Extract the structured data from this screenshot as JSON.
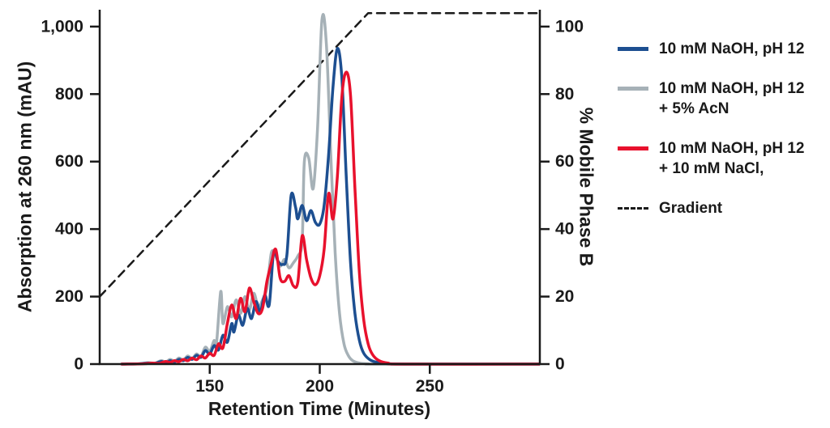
{
  "figure": {
    "x_title": "Retention Time (Minutes)",
    "y_left_title": "Absorption at 260 nm (mAU)",
    "y_right_title": "% Mobile Phase B"
  },
  "legend": {
    "items": [
      {
        "label": "10 mM NaOH, pH 12",
        "color": "#1d4f91",
        "dash": false
      },
      {
        "label": "10 mM NaOH, pH 12\n+ 5% AcN",
        "color": "#a6b1b7",
        "dash": false
      },
      {
        "label": "10 mM NaOH, pH 12\n+ 10 mM NaCl,",
        "color": "#e8112d",
        "dash": false
      },
      {
        "label": "Gradient",
        "color": "#1a1a1a",
        "dash": true
      }
    ]
  },
  "chart_data": {
    "type": "line",
    "title": "",
    "xlabel": "Retention Time (Minutes)",
    "ylabel_left": "Absorption at 260 nm (mAU)",
    "ylabel_right": "% Mobile Phase B",
    "xlim": [
      100,
      300
    ],
    "ylim_left": [
      0,
      1050
    ],
    "ylim_right": [
      0,
      105
    ],
    "grid": false,
    "legend_position": "right",
    "axis_color": "#1a1a1a",
    "x_ticks": {
      "values": [
        150,
        200,
        250
      ],
      "labels": [
        "150",
        "200",
        "250"
      ]
    },
    "y_left_ticks": {
      "values": [
        0,
        200,
        400,
        600,
        800,
        1000
      ],
      "labels": [
        "0",
        "200",
        "400",
        "600",
        "800",
        "1,000"
      ]
    },
    "y_right_ticks": {
      "values": [
        0,
        20,
        40,
        60,
        80,
        100
      ],
      "labels": [
        "0",
        "20",
        "40",
        "60",
        "80",
        "100"
      ]
    },
    "series": [
      {
        "name": "Gradient",
        "axis": "right",
        "color": "#1a1a1a",
        "width": 2.5,
        "dash": [
          10,
          7
        ],
        "smooth": false,
        "points": [
          [
            100,
            20
          ],
          [
            222,
            104
          ],
          [
            300,
            104
          ]
        ]
      },
      {
        "name": "10 mM NaOH, pH 12 + 5% AcN",
        "axis": "left",
        "color": "#a6b1b7",
        "width": 3.5,
        "dash": null,
        "smooth": true,
        "points": [
          [
            110,
            0
          ],
          [
            118,
            1
          ],
          [
            122,
            4
          ],
          [
            125,
            3
          ],
          [
            128,
            10
          ],
          [
            130,
            6
          ],
          [
            132,
            14
          ],
          [
            134,
            8
          ],
          [
            136,
            18
          ],
          [
            138,
            12
          ],
          [
            140,
            24
          ],
          [
            142,
            16
          ],
          [
            144,
            30
          ],
          [
            146,
            22
          ],
          [
            148,
            50
          ],
          [
            150,
            38
          ],
          [
            152,
            70
          ],
          [
            153,
            55
          ],
          [
            155,
            215
          ],
          [
            156,
            120
          ],
          [
            158,
            170
          ],
          [
            160,
            140
          ],
          [
            162,
            190
          ],
          [
            164,
            150
          ],
          [
            166,
            200
          ],
          [
            168,
            160
          ],
          [
            170,
            210
          ],
          [
            172,
            170
          ],
          [
            174,
            190
          ],
          [
            176,
            225
          ],
          [
            178,
            330
          ],
          [
            180,
            320
          ],
          [
            182,
            290
          ],
          [
            184,
            310
          ],
          [
            186,
            285
          ],
          [
            188,
            300
          ],
          [
            190,
            320
          ],
          [
            192,
            365
          ],
          [
            193,
            600
          ],
          [
            195,
            610
          ],
          [
            197,
            520
          ],
          [
            199,
            700
          ],
          [
            201,
            1020
          ],
          [
            203,
            950
          ],
          [
            205,
            620
          ],
          [
            207,
            330
          ],
          [
            209,
            150
          ],
          [
            211,
            60
          ],
          [
            213,
            25
          ],
          [
            215,
            10
          ],
          [
            218,
            3
          ],
          [
            222,
            1
          ],
          [
            228,
            0
          ],
          [
            300,
            0
          ]
        ]
      },
      {
        "name": "10 mM NaOH, pH 12",
        "axis": "left",
        "color": "#1d4f91",
        "width": 3.5,
        "dash": null,
        "smooth": true,
        "points": [
          [
            110,
            0
          ],
          [
            118,
            1
          ],
          [
            122,
            3
          ],
          [
            125,
            2
          ],
          [
            128,
            8
          ],
          [
            130,
            4
          ],
          [
            132,
            10
          ],
          [
            134,
            6
          ],
          [
            136,
            14
          ],
          [
            138,
            10
          ],
          [
            140,
            20
          ],
          [
            142,
            14
          ],
          [
            144,
            26
          ],
          [
            146,
            20
          ],
          [
            148,
            40
          ],
          [
            150,
            30
          ],
          [
            152,
            55
          ],
          [
            154,
            42
          ],
          [
            156,
            85
          ],
          [
            158,
            65
          ],
          [
            160,
            120
          ],
          [
            161,
            95
          ],
          [
            163,
            145
          ],
          [
            165,
            115
          ],
          [
            167,
            165
          ],
          [
            169,
            135
          ],
          [
            171,
            185
          ],
          [
            173,
            155
          ],
          [
            175,
            205
          ],
          [
            177,
            175
          ],
          [
            179,
            330
          ],
          [
            181,
            305
          ],
          [
            183,
            295
          ],
          [
            185,
            320
          ],
          [
            187,
            500
          ],
          [
            189,
            465
          ],
          [
            190,
            430
          ],
          [
            192,
            470
          ],
          [
            194,
            425
          ],
          [
            196,
            455
          ],
          [
            198,
            420
          ],
          [
            200,
            415
          ],
          [
            202,
            470
          ],
          [
            204,
            620
          ],
          [
            206,
            820
          ],
          [
            208,
            935
          ],
          [
            210,
            850
          ],
          [
            212,
            560
          ],
          [
            214,
            300
          ],
          [
            216,
            150
          ],
          [
            218,
            70
          ],
          [
            220,
            32
          ],
          [
            223,
            12
          ],
          [
            227,
            4
          ],
          [
            232,
            1
          ],
          [
            240,
            0
          ],
          [
            300,
            0
          ]
        ]
      },
      {
        "name": "10 mM NaOH, pH 12 + 10 mM NaCl,",
        "axis": "left",
        "color": "#e8112d",
        "width": 3.5,
        "dash": null,
        "smooth": true,
        "points": [
          [
            110,
            0
          ],
          [
            120,
            1
          ],
          [
            124,
            3
          ],
          [
            127,
            2
          ],
          [
            130,
            8
          ],
          [
            132,
            5
          ],
          [
            134,
            10
          ],
          [
            136,
            7
          ],
          [
            138,
            14
          ],
          [
            140,
            10
          ],
          [
            142,
            18
          ],
          [
            144,
            13
          ],
          [
            146,
            24
          ],
          [
            148,
            18
          ],
          [
            150,
            32
          ],
          [
            152,
            26
          ],
          [
            154,
            60
          ],
          [
            156,
            48
          ],
          [
            158,
            120
          ],
          [
            160,
            175
          ],
          [
            162,
            135
          ],
          [
            164,
            195
          ],
          [
            166,
            155
          ],
          [
            168,
            225
          ],
          [
            170,
            185
          ],
          [
            172,
            150
          ],
          [
            174,
            165
          ],
          [
            176,
            245
          ],
          [
            178,
            300
          ],
          [
            180,
            340
          ],
          [
            182,
            255
          ],
          [
            184,
            245
          ],
          [
            186,
            262
          ],
          [
            188,
            232
          ],
          [
            190,
            242
          ],
          [
            192,
            380
          ],
          [
            194,
            310
          ],
          [
            196,
            255
          ],
          [
            198,
            235
          ],
          [
            200,
            262
          ],
          [
            202,
            340
          ],
          [
            204,
            505
          ],
          [
            206,
            430
          ],
          [
            208,
            555
          ],
          [
            210,
            790
          ],
          [
            212,
            865
          ],
          [
            214,
            795
          ],
          [
            216,
            520
          ],
          [
            218,
            270
          ],
          [
            220,
            130
          ],
          [
            222,
            60
          ],
          [
            224,
            28
          ],
          [
            227,
            10
          ],
          [
            231,
            3
          ],
          [
            238,
            0
          ],
          [
            300,
            0
          ]
        ]
      }
    ]
  }
}
